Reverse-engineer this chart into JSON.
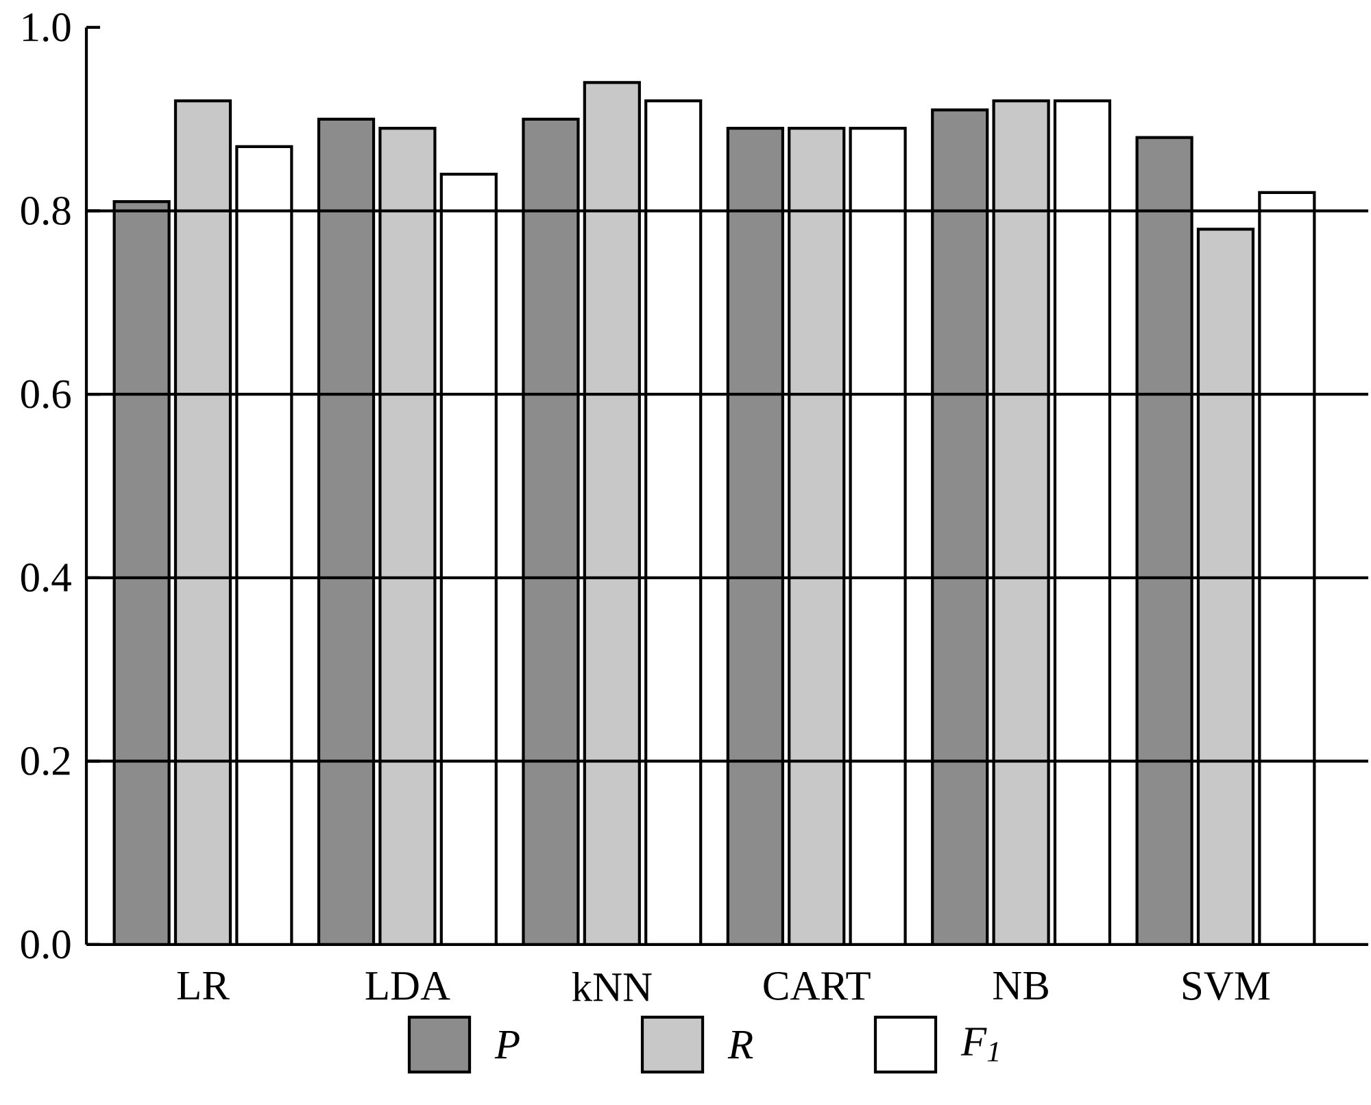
{
  "chart_data": {
    "type": "bar",
    "categories": [
      "LR",
      "LDA",
      "kNN",
      "CART",
      "NB",
      "SVM"
    ],
    "series": [
      {
        "name": "P",
        "color": "#8c8c8c",
        "values": [
          0.81,
          0.9,
          0.9,
          0.89,
          0.91,
          0.88
        ]
      },
      {
        "name": "R",
        "color": "#c8c8c8",
        "values": [
          0.92,
          0.89,
          0.94,
          0.89,
          0.92,
          0.78
        ]
      },
      {
        "name": "F$_{1}$",
        "color": "#ffffff",
        "values": [
          0.87,
          0.84,
          0.92,
          0.89,
          0.92,
          0.82
        ]
      }
    ],
    "ylim": [
      0.0,
      1.0
    ],
    "yticks": [
      {
        "value": 0.0,
        "label": "0.0"
      },
      {
        "value": 0.2,
        "label": "0.2"
      },
      {
        "value": 0.4,
        "label": "0.4"
      },
      {
        "value": 0.6,
        "label": "0.6"
      },
      {
        "value": 0.8,
        "label": "0.8"
      },
      {
        "value": 1.0,
        "label": "1.0"
      }
    ],
    "grid": "y",
    "legend": "bottom"
  }
}
